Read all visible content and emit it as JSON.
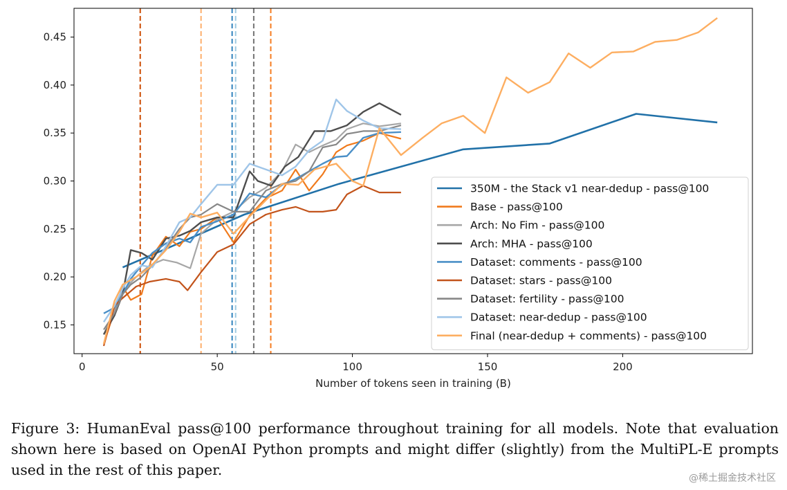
{
  "chart_data": {
    "type": "line",
    "xlabel": "Number of tokens seen in training (B)",
    "ylabel": "",
    "xlim": [
      -3,
      248
    ],
    "ylim": [
      0.12,
      0.48
    ],
    "xticks": [
      0,
      50,
      100,
      150,
      200
    ],
    "yticks": [
      0.15,
      0.2,
      0.25,
      0.3,
      0.35,
      0.4,
      0.45
    ],
    "grid": false,
    "legend_position": "lower-right",
    "vlines": [
      {
        "x": 21.5,
        "color": "#cc4c02"
      },
      {
        "x": 44,
        "color": "#fdae6b"
      },
      {
        "x": 55.5,
        "color": "#3182bd"
      },
      {
        "x": 56.8,
        "color": "#9ecae1"
      },
      {
        "x": 63.5,
        "color": "#737373"
      },
      {
        "x": 69.8,
        "color": "#f57c20"
      }
    ],
    "series": [
      {
        "name": "350M - the Stack v1 near-dedup - pass@100",
        "color": "#2171a8",
        "width": 2.6,
        "x": [
          15,
          30,
          60,
          95,
          141,
          173,
          205,
          235
        ],
        "y": [
          0.21,
          0.228,
          0.265,
          0.297,
          0.333,
          0.339,
          0.37,
          0.361
        ]
      },
      {
        "name": "Base - pass@100",
        "color": "#f07a1c",
        "width": 2.2,
        "x": [
          8,
          12,
          15,
          18,
          22,
          26,
          31,
          36,
          40,
          44,
          50,
          56,
          62,
          68,
          74,
          79,
          84,
          89,
          94,
          98,
          104,
          110,
          118
        ],
        "y": [
          0.13,
          0.165,
          0.19,
          0.176,
          0.182,
          0.222,
          0.242,
          0.232,
          0.247,
          0.25,
          0.262,
          0.236,
          0.264,
          0.282,
          0.29,
          0.312,
          0.29,
          0.307,
          0.33,
          0.337,
          0.342,
          0.35,
          0.344
        ]
      },
      {
        "name": "Arch: No Fim - pass@100",
        "color": "#a6a6a6",
        "width": 2.2,
        "x": [
          8,
          12,
          15,
          20,
          25,
          30,
          35,
          40,
          44,
          50,
          56,
          62,
          68,
          74,
          79,
          84,
          89,
          94,
          98,
          104,
          110,
          118
        ],
        "y": [
          0.14,
          0.165,
          0.185,
          0.2,
          0.212,
          0.218,
          0.215,
          0.209,
          0.245,
          0.26,
          0.268,
          0.283,
          0.293,
          0.31,
          0.338,
          0.33,
          0.337,
          0.343,
          0.354,
          0.36,
          0.357,
          0.36
        ]
      },
      {
        "name": "Arch: MHA - pass@100",
        "color": "#4d4d4d",
        "width": 2.4,
        "x": [
          8,
          12,
          15,
          18,
          22,
          26,
          31,
          36,
          40,
          44,
          50,
          56,
          62,
          65,
          70,
          75,
          80,
          86,
          92,
          98,
          104,
          110,
          118
        ],
        "y": [
          0.14,
          0.16,
          0.182,
          0.228,
          0.225,
          0.218,
          0.24,
          0.243,
          0.248,
          0.257,
          0.262,
          0.262,
          0.31,
          0.3,
          0.295,
          0.315,
          0.325,
          0.352,
          0.352,
          0.358,
          0.372,
          0.381,
          0.369
        ]
      },
      {
        "name": "Dataset: comments - pass@100",
        "color": "#4a8fc7",
        "width": 2.4,
        "x": [
          8,
          12,
          15,
          18,
          22,
          26,
          31,
          36,
          40,
          44,
          50,
          56,
          62,
          68,
          74,
          79,
          84,
          89,
          94,
          98,
          104,
          110,
          118
        ],
        "y": [
          0.162,
          0.168,
          0.182,
          0.198,
          0.212,
          0.225,
          0.235,
          0.24,
          0.236,
          0.252,
          0.258,
          0.265,
          0.287,
          0.283,
          0.296,
          0.302,
          0.31,
          0.318,
          0.325,
          0.326,
          0.345,
          0.35,
          0.351
        ]
      },
      {
        "name": "Dataset: stars - pass@100",
        "color": "#c2531a",
        "width": 2.2,
        "x": [
          8,
          12,
          15,
          20,
          25,
          31,
          36,
          39,
          44,
          50,
          56,
          62,
          68,
          74,
          79,
          84,
          89,
          94,
          98,
          104,
          110,
          118
        ],
        "y": [
          0.128,
          0.17,
          0.178,
          0.19,
          0.195,
          0.198,
          0.195,
          0.186,
          0.205,
          0.226,
          0.234,
          0.255,
          0.265,
          0.27,
          0.273,
          0.268,
          0.268,
          0.27,
          0.286,
          0.295,
          0.288,
          0.288
        ]
      },
      {
        "name": "Dataset: fertility - pass@100",
        "color": "#878787",
        "width": 2.2,
        "x": [
          8,
          12,
          15,
          18,
          22,
          26,
          31,
          36,
          40,
          44,
          50,
          56,
          62,
          68,
          74,
          79,
          84,
          89,
          94,
          98,
          104,
          110,
          118
        ],
        "y": [
          0.145,
          0.162,
          0.182,
          0.192,
          0.2,
          0.212,
          0.23,
          0.25,
          0.262,
          0.265,
          0.276,
          0.268,
          0.268,
          0.29,
          0.297,
          0.3,
          0.31,
          0.335,
          0.338,
          0.349,
          0.352,
          0.352,
          0.358
        ]
      },
      {
        "name": "Dataset: near-dedup - pass@100",
        "color": "#9fc5e8",
        "width": 2.4,
        "x": [
          8,
          12,
          15,
          18,
          22,
          26,
          31,
          36,
          40,
          44,
          50,
          56,
          62,
          68,
          74,
          79,
          84,
          89,
          94,
          98,
          104,
          110,
          118
        ],
        "y": [
          0.153,
          0.17,
          0.188,
          0.202,
          0.212,
          0.21,
          0.232,
          0.257,
          0.262,
          0.276,
          0.296,
          0.296,
          0.318,
          0.312,
          0.306,
          0.315,
          0.332,
          0.342,
          0.385,
          0.373,
          0.363,
          0.355,
          0.354
        ]
      },
      {
        "name": "Final (near-dedup + comments) - pass@100",
        "color": "#fdae61",
        "width": 2.4,
        "x": [
          8,
          12,
          15,
          20,
          25,
          31,
          36,
          40,
          44,
          50,
          56,
          62,
          68,
          74,
          80,
          86,
          94,
          100,
          104,
          110,
          118,
          126,
          133,
          141,
          149,
          157,
          165,
          173,
          180,
          188,
          196,
          204,
          212,
          220,
          228,
          235
        ],
        "y": [
          0.13,
          0.175,
          0.192,
          0.2,
          0.21,
          0.228,
          0.247,
          0.266,
          0.262,
          0.267,
          0.245,
          0.263,
          0.28,
          0.297,
          0.296,
          0.312,
          0.318,
          0.3,
          0.295,
          0.355,
          0.327,
          0.345,
          0.36,
          0.368,
          0.35,
          0.408,
          0.392,
          0.403,
          0.433,
          0.418,
          0.434,
          0.435,
          0.445,
          0.447,
          0.455,
          0.47
        ]
      }
    ]
  },
  "caption": "Figure 3: HumanEval pass@100 performance throughout training for all models. Note that evaluation shown here is based on OpenAI Python prompts and might differ (slightly) from the MultiPL-E prompts used in the rest of this paper.",
  "watermark": "@稀土掘金技术社区"
}
